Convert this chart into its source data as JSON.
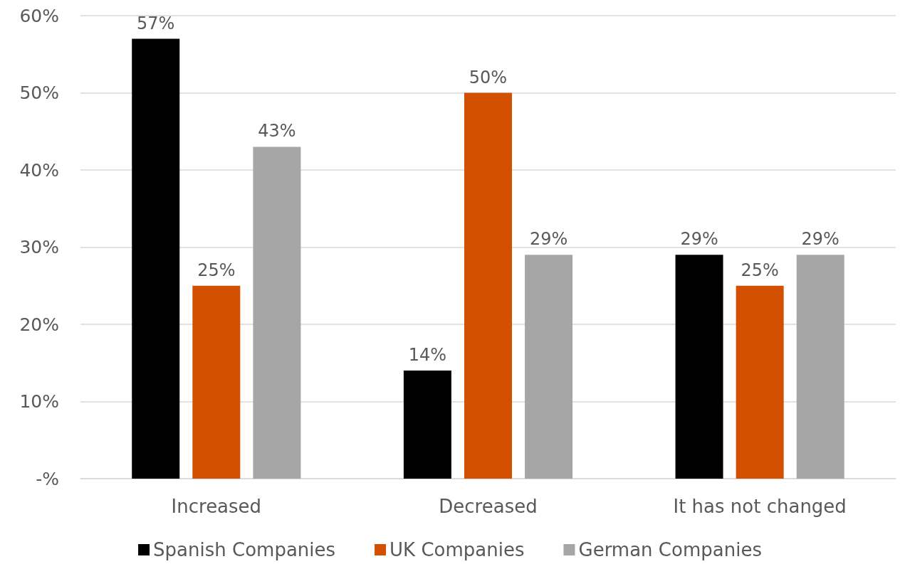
{
  "chart_data": {
    "type": "bar",
    "categories": [
      "Increased",
      "Decreased",
      "It has not changed"
    ],
    "series": [
      {
        "name": "Spanish Companies",
        "color": "#000000",
        "values": [
          57,
          14,
          29
        ],
        "value_labels": [
          "57%",
          "14%",
          "29%"
        ]
      },
      {
        "name": "UK Companies",
        "color": "#d35000",
        "values": [
          25,
          50,
          25
        ],
        "value_labels": [
          "25%",
          "50%",
          "25%"
        ]
      },
      {
        "name": "German Companies",
        "color": "#a6a6a6",
        "values": [
          43,
          29,
          29
        ],
        "value_labels": [
          "43%",
          "29%",
          "29%"
        ]
      }
    ],
    "ylim": [
      0,
      60
    ],
    "yticks": [
      {
        "value": 0,
        "label": "-%"
      },
      {
        "value": 10,
        "label": "10%"
      },
      {
        "value": 20,
        "label": "20%"
      },
      {
        "value": 30,
        "label": "30%"
      },
      {
        "value": 40,
        "label": "40%"
      },
      {
        "value": 50,
        "label": "50%"
      },
      {
        "value": 60,
        "label": "60%"
      }
    ],
    "grid": "y",
    "legend": "bottom"
  }
}
